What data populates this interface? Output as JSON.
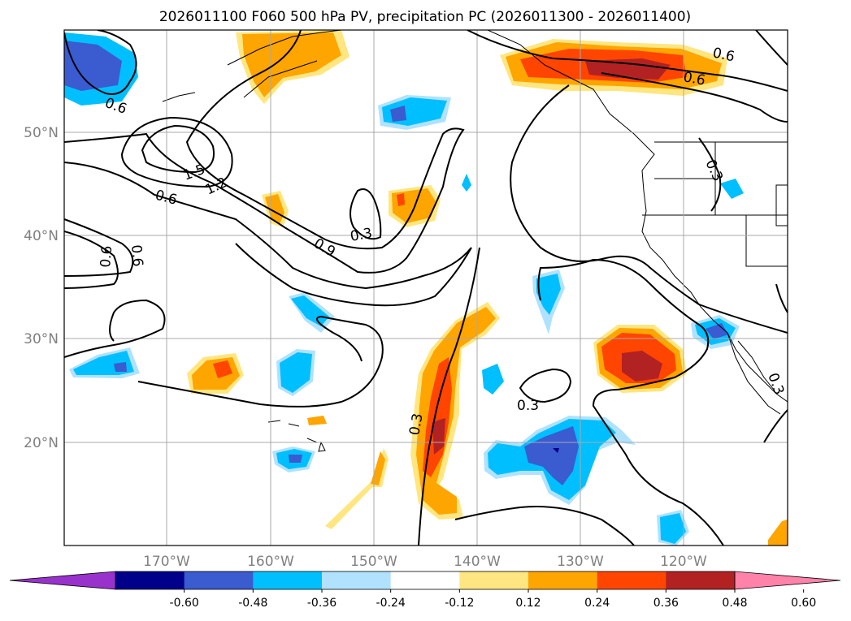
{
  "title": "2026011100 F060 500 hPa PV, precipitation PC (2026011300 - 2026011400)",
  "axes": {
    "lat_labels": [
      "50°N",
      "40°N",
      "30°N",
      "20°N"
    ],
    "lon_labels": [
      "170°W",
      "160°W",
      "150°W",
      "140°W",
      "130°W",
      "120°W"
    ]
  },
  "colorbar": {
    "ticks": [
      "-0.60",
      "-0.48",
      "-0.36",
      "-0.24",
      "-0.12",
      "0.12",
      "0.24",
      "0.36",
      "0.48",
      "0.60"
    ],
    "colors": [
      "#9932cc",
      "#00008b",
      "#3b5bd0",
      "#00bfff",
      "#b0e2ff",
      "#ffffff",
      "#ffe680",
      "#ffa500",
      "#ff4500",
      "#b22222",
      "#ff82ab"
    ]
  },
  "contour_labels": [
    {
      "id": "c1",
      "text": "0.6"
    },
    {
      "id": "c2",
      "text": "1.5"
    },
    {
      "id": "c3",
      "text": "1.2"
    },
    {
      "id": "c4",
      "text": "0.6"
    },
    {
      "id": "c5",
      "text": "0.9"
    },
    {
      "id": "c6",
      "text": "0.3"
    },
    {
      "id": "c7",
      "text": "0.6"
    },
    {
      "id": "c8",
      "text": "0.6"
    },
    {
      "id": "c9",
      "text": "0.6"
    },
    {
      "id": "c10",
      "text": "0.6"
    },
    {
      "id": "c11",
      "text": "0.3"
    },
    {
      "id": "c12",
      "text": "0.3"
    },
    {
      "id": "c13",
      "text": "0.3"
    },
    {
      "id": "c14",
      "text": "0.3"
    }
  ]
}
